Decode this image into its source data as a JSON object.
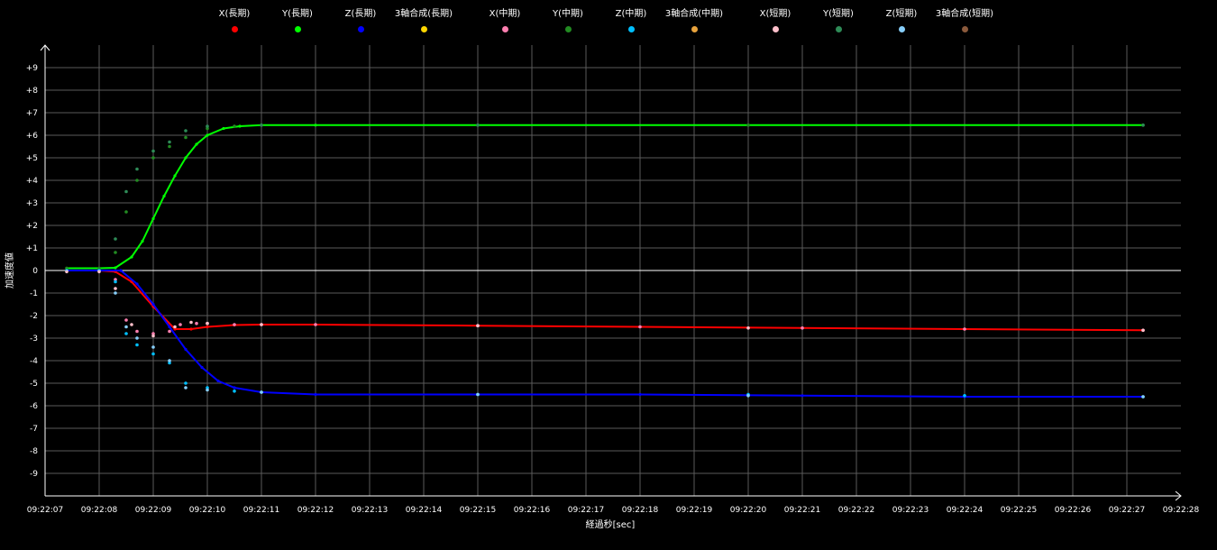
{
  "chart_data": {
    "type": "scatter",
    "xlabel": "経過秒[sec]",
    "ylabel": "加速度値",
    "x_ticks": [
      "09:22:07",
      "09:22:08",
      "09:22:09",
      "09:22:10",
      "09:22:11",
      "09:22:12",
      "09:22:13",
      "09:22:14",
      "09:22:15",
      "09:22:16",
      "09:22:17",
      "09:22:18",
      "09:22:19",
      "09:22:20",
      "09:22:21",
      "09:22:22",
      "09:22:23",
      "09:22:24",
      "09:22:25",
      "09:22:26",
      "09:22:27",
      "09:22:28"
    ],
    "y_ticks": [
      "+9",
      "+8",
      "+7",
      "+6",
      "+5",
      "+4",
      "+3",
      "+2",
      "+1",
      "0",
      "-1",
      "-2",
      "-3",
      "-4",
      "-5",
      "-6",
      "-7",
      "-8",
      "-9"
    ],
    "xlim": [
      "09:22:07",
      "09:22:28"
    ],
    "ylim": [
      -10,
      10
    ],
    "grid": true,
    "legend_position": "top",
    "series": [
      {
        "name": "X(長期)",
        "color": "#ff0000",
        "style": "line",
        "x": [
          "09:22:07.4",
          "09:22:08.0",
          "09:22:08.3",
          "09:22:08.6",
          "09:22:09.0",
          "09:22:09.4",
          "09:22:09.7",
          "09:22:10.0",
          "09:22:10.5",
          "09:22:11.0",
          "09:22:12.0",
          "09:22:15.0",
          "09:22:18.0",
          "09:22:21.0",
          "09:22:24.0",
          "09:22:27.3"
        ],
        "y": [
          0.0,
          0.0,
          -0.05,
          -0.5,
          -1.6,
          -2.6,
          -2.6,
          -2.5,
          -2.42,
          -2.4,
          -2.4,
          -2.45,
          -2.5,
          -2.55,
          -2.6,
          -2.65
        ]
      },
      {
        "name": "Y(長期)",
        "color": "#00ff00",
        "style": "line",
        "x": [
          "09:22:07.4",
          "09:22:08.0",
          "09:22:08.3",
          "09:22:08.6",
          "09:22:08.8",
          "09:22:09.0",
          "09:22:09.2",
          "09:22:09.4",
          "09:22:09.6",
          "09:22:09.8",
          "09:22:10.0",
          "09:22:10.3",
          "09:22:10.6",
          "09:22:11.0",
          "09:22:12.0",
          "09:22:15.0",
          "09:22:20.0",
          "09:22:27.3"
        ],
        "y": [
          0.1,
          0.1,
          0.12,
          0.6,
          1.3,
          2.3,
          3.3,
          4.2,
          5.0,
          5.6,
          6.0,
          6.3,
          6.4,
          6.45,
          6.45,
          6.45,
          6.45,
          6.45
        ]
      },
      {
        "name": "Z(長期)",
        "color": "#0000ff",
        "style": "line",
        "x": [
          "09:22:07.4",
          "09:22:08.0",
          "09:22:08.4",
          "09:22:08.7",
          "09:22:09.0",
          "09:22:09.3",
          "09:22:09.6",
          "09:22:09.9",
          "09:22:10.2",
          "09:22:10.5",
          "09:22:11.0",
          "09:22:12.0",
          "09:22:15.0",
          "09:22:18.0",
          "09:22:21.0",
          "09:22:24.0",
          "09:22:27.3"
        ],
        "y": [
          0.0,
          0.0,
          0.0,
          -0.6,
          -1.5,
          -2.5,
          -3.5,
          -4.3,
          -4.9,
          -5.2,
          -5.4,
          -5.5,
          -5.5,
          -5.5,
          -5.55,
          -5.6,
          -5.6
        ]
      },
      {
        "name": "3軸合成(長期)",
        "color": "#ffd700",
        "style": "none",
        "x": [],
        "y": []
      },
      {
        "name": "X(中期)",
        "color": "#ff7fb0",
        "style": "scatter",
        "x": [
          "09:22:07.4",
          "09:22:08.0",
          "09:22:08.3",
          "09:22:08.5",
          "09:22:08.7",
          "09:22:09.0",
          "09:22:09.3",
          "09:22:09.5",
          "09:22:09.8",
          "09:22:10.0",
          "09:22:10.5",
          "09:22:11.0",
          "09:22:12.0",
          "09:22:15.0",
          "09:22:18.0",
          "09:22:21.0",
          "09:22:24.0",
          "09:22:27.3"
        ],
        "y": [
          0.0,
          0.0,
          -0.4,
          -2.2,
          -2.7,
          -2.8,
          -2.7,
          -2.4,
          -2.35,
          -2.35,
          -2.4,
          -2.4,
          -2.4,
          -2.45,
          -2.5,
          -2.55,
          -2.6,
          -2.65
        ]
      },
      {
        "name": "Y(中期)",
        "color": "#228b22",
        "style": "scatter",
        "x": [
          "09:22:07.4",
          "09:22:08.0",
          "09:22:08.3",
          "09:22:08.5",
          "09:22:08.7",
          "09:22:09.0",
          "09:22:09.3",
          "09:22:09.6",
          "09:22:10.0",
          "09:22:10.5",
          "09:22:11.0",
          "09:22:15.0",
          "09:22:20.0",
          "09:22:27.3"
        ],
        "y": [
          0.1,
          0.1,
          0.8,
          2.6,
          4.0,
          5.0,
          5.5,
          5.9,
          6.3,
          6.4,
          6.45,
          6.45,
          6.45,
          6.45
        ]
      },
      {
        "name": "Z(中期)",
        "color": "#00bfff",
        "style": "scatter",
        "x": [
          "09:22:07.4",
          "09:22:08.0",
          "09:22:08.3",
          "09:22:08.5",
          "09:22:08.7",
          "09:22:09.0",
          "09:22:09.3",
          "09:22:09.6",
          "09:22:10.0",
          "09:22:10.5",
          "09:22:11.0",
          "09:22:15.0",
          "09:22:20.0",
          "09:22:24.0",
          "09:22:27.3"
        ],
        "y": [
          0.0,
          0.0,
          -0.5,
          -2.8,
          -3.3,
          -3.7,
          -4.1,
          -5.0,
          -5.2,
          -5.35,
          -5.4,
          -5.5,
          -5.5,
          -5.55,
          -5.6
        ]
      },
      {
        "name": "3軸合成(中期)",
        "color": "#e8a33d",
        "style": "none",
        "x": [],
        "y": []
      },
      {
        "name": "X(短期)",
        "color": "#ffc0cb",
        "style": "scatter",
        "x": [
          "09:22:07.4",
          "09:22:08.0",
          "09:22:08.3",
          "09:22:08.6",
          "09:22:09.0",
          "09:22:09.4",
          "09:22:09.7",
          "09:22:10.0",
          "09:22:11.0",
          "09:22:15.0",
          "09:22:20.0",
          "09:22:27.3"
        ],
        "y": [
          -0.05,
          -0.05,
          -0.8,
          -2.4,
          -2.9,
          -2.5,
          -2.3,
          -2.35,
          -2.4,
          -2.45,
          -2.55,
          -2.65
        ]
      },
      {
        "name": "Y(短期)",
        "color": "#2e8b57",
        "style": "scatter",
        "x": [
          "09:22:08.3",
          "09:22:08.5",
          "09:22:08.7",
          "09:22:09.0",
          "09:22:09.3",
          "09:22:09.6",
          "09:22:10.0",
          "09:22:11.0",
          "09:22:15.0",
          "09:22:27.3"
        ],
        "y": [
          1.4,
          3.5,
          4.5,
          5.3,
          5.7,
          6.2,
          6.4,
          6.45,
          6.45,
          6.45
        ]
      },
      {
        "name": "Z(短期)",
        "color": "#87cefa",
        "style": "scatter",
        "x": [
          "09:22:08.3",
          "09:22:08.5",
          "09:22:08.7",
          "09:22:09.0",
          "09:22:09.3",
          "09:22:09.6",
          "09:22:10.0",
          "09:22:11.0",
          "09:22:15.0",
          "09:22:20.0",
          "09:22:27.3"
        ],
        "y": [
          -1.0,
          -2.5,
          -3.0,
          -3.4,
          -4.0,
          -5.2,
          -5.3,
          -5.4,
          -5.5,
          -5.55,
          -5.6
        ]
      },
      {
        "name": "3軸合成(短期)",
        "color": "#8b5a3c",
        "style": "none",
        "x": [],
        "y": []
      }
    ]
  }
}
